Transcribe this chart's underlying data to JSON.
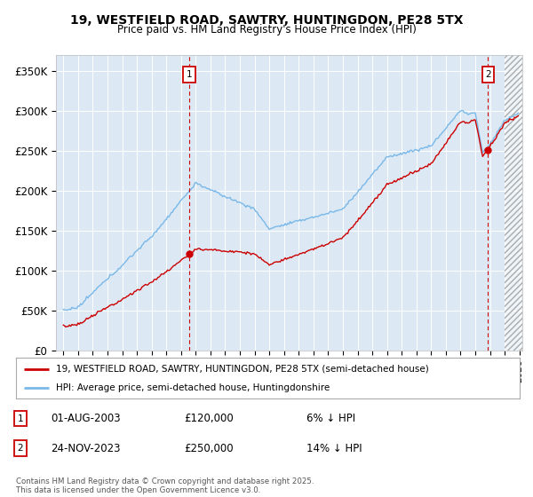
{
  "title": "19, WESTFIELD ROAD, SAWTRY, HUNTINGDON, PE28 5TX",
  "subtitle": "Price paid vs. HM Land Registry's House Price Index (HPI)",
  "bg_color": "#dce9f5",
  "hpi_color": "#7ab8e8",
  "price_color": "#cc0000",
  "sale1_date": "01-AUG-2003",
  "sale1_price": "£120,000",
  "sale1_note": "6% ↓ HPI",
  "sale2_date": "24-NOV-2023",
  "sale2_price": "£250,000",
  "sale2_note": "14% ↓ HPI",
  "legend_line1": "19, WESTFIELD ROAD, SAWTRY, HUNTINGDON, PE28 5TX (semi-detached house)",
  "legend_line2": "HPI: Average price, semi-detached house, Huntingdonshire",
  "footer": "Contains HM Land Registry data © Crown copyright and database right 2025.\nThis data is licensed under the Open Government Licence v3.0.",
  "ylim": [
    0,
    370000
  ],
  "yticks": [
    0,
    50000,
    100000,
    150000,
    200000,
    250000,
    300000,
    350000
  ],
  "ytick_labels": [
    "£0",
    "£50K",
    "£100K",
    "£150K",
    "£200K",
    "£250K",
    "£300K",
    "£350K"
  ],
  "sale1_yr": 2003.583,
  "sale2_yr": 2023.875,
  "sale1_val": 120000,
  "sale2_val": 250000
}
